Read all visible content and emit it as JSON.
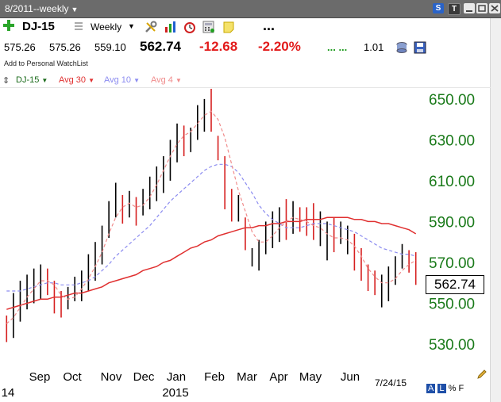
{
  "window": {
    "title": "8/2011--weekly",
    "buttons": [
      "S",
      "T"
    ]
  },
  "toolbar": {
    "symbol": "DJ-15",
    "period": "Weekly",
    "ellipsis": "..."
  },
  "quote": {
    "open": "575.26",
    "high": "575.26",
    "low": "559.10",
    "last": "562.74",
    "change": "-12.68",
    "change_pct": "-2.20%",
    "dots": "... ...",
    "ratio": "1.01",
    "watchlist_link": "Add to Personal WatchList"
  },
  "legend": {
    "symbol": "DJ-15",
    "avg30": "Avg 30",
    "avg10": "Avg 10",
    "avg4": "Avg 4"
  },
  "colors": {
    "up": "#000000",
    "down": "#d61f1f",
    "avg30": "#e03030",
    "avg10": "#8c8cf0",
    "avg4": "#f08c8c",
    "axis": "#1a7a1a"
  },
  "chart_data": {
    "type": "line",
    "title": "",
    "x_labels": [
      "Sep",
      "Oct",
      "Nov",
      "Dec",
      "Jan",
      "Feb",
      "Mar",
      "Apr",
      "May",
      "Jun"
    ],
    "x_year_labels": [
      "14",
      "2015"
    ],
    "y_ticks": [
      "650.00",
      "630.00",
      "610.00",
      "590.00",
      "570.00",
      "550.00",
      "530.00"
    ],
    "ylim": [
      523,
      655
    ],
    "last_price": "562.74",
    "last_date": "7/24/15",
    "bars": [
      {
        "h": 544,
        "l": 531,
        "up": false
      },
      {
        "h": 555,
        "l": 533,
        "up": true
      },
      {
        "h": 561,
        "l": 541,
        "up": true
      },
      {
        "h": 564,
        "l": 547,
        "up": true
      },
      {
        "h": 567,
        "l": 550,
        "up": true
      },
      {
        "h": 569,
        "l": 552,
        "up": true
      },
      {
        "h": 567,
        "l": 554,
        "up": false
      },
      {
        "h": 561,
        "l": 545,
        "up": false
      },
      {
        "h": 556,
        "l": 543,
        "up": false
      },
      {
        "h": 558,
        "l": 547,
        "up": true
      },
      {
        "h": 563,
        "l": 551,
        "up": true
      },
      {
        "h": 566,
        "l": 551,
        "up": true
      },
      {
        "h": 574,
        "l": 556,
        "up": true
      },
      {
        "h": 580,
        "l": 561,
        "up": true
      },
      {
        "h": 588,
        "l": 569,
        "up": true
      },
      {
        "h": 600,
        "l": 582,
        "up": true
      },
      {
        "h": 609,
        "l": 592,
        "up": true
      },
      {
        "h": 603,
        "l": 589,
        "up": false
      },
      {
        "h": 605,
        "l": 592,
        "up": true
      },
      {
        "h": 602,
        "l": 588,
        "up": false
      },
      {
        "h": 606,
        "l": 593,
        "up": true
      },
      {
        "h": 612,
        "l": 596,
        "up": true
      },
      {
        "h": 617,
        "l": 600,
        "up": true
      },
      {
        "h": 622,
        "l": 604,
        "up": true
      },
      {
        "h": 630,
        "l": 610,
        "up": true
      },
      {
        "h": 638,
        "l": 619,
        "up": true
      },
      {
        "h": 637,
        "l": 622,
        "up": false
      },
      {
        "h": 636,
        "l": 624,
        "up": true
      },
      {
        "h": 647,
        "l": 630,
        "up": true
      },
      {
        "h": 650,
        "l": 634,
        "up": true
      },
      {
        "h": 655,
        "l": 634,
        "up": false
      },
      {
        "h": 632,
        "l": 620,
        "up": false
      },
      {
        "h": 622,
        "l": 596,
        "up": false
      },
      {
        "h": 606,
        "l": 590,
        "up": false
      },
      {
        "h": 603,
        "l": 590,
        "up": true
      },
      {
        "h": 592,
        "l": 576,
        "up": false
      },
      {
        "h": 577,
        "l": 568,
        "up": true
      },
      {
        "h": 581,
        "l": 566,
        "up": true
      },
      {
        "h": 590,
        "l": 574,
        "up": true
      },
      {
        "h": 595,
        "l": 577,
        "up": true
      },
      {
        "h": 597,
        "l": 580,
        "up": true
      },
      {
        "h": 601,
        "l": 581,
        "up": false
      },
      {
        "h": 600,
        "l": 584,
        "up": true
      },
      {
        "h": 597,
        "l": 585,
        "up": false
      },
      {
        "h": 597,
        "l": 583,
        "up": false
      },
      {
        "h": 599,
        "l": 581,
        "up": false
      },
      {
        "h": 595,
        "l": 578,
        "up": true
      },
      {
        "h": 590,
        "l": 571,
        "up": true
      },
      {
        "h": 592,
        "l": 575,
        "up": false
      },
      {
        "h": 590,
        "l": 579,
        "up": true
      },
      {
        "h": 588,
        "l": 574,
        "up": true
      },
      {
        "h": 584,
        "l": 566,
        "up": false
      },
      {
        "h": 577,
        "l": 561,
        "up": false
      },
      {
        "h": 569,
        "l": 556,
        "up": false
      },
      {
        "h": 566,
        "l": 554,
        "up": false
      },
      {
        "h": 564,
        "l": 548,
        "up": true
      },
      {
        "h": 568,
        "l": 551,
        "up": true
      },
      {
        "h": 573,
        "l": 559,
        "up": true
      },
      {
        "h": 579,
        "l": 567,
        "up": true
      },
      {
        "h": 576,
        "l": 565,
        "up": false
      },
      {
        "h": 575,
        "l": 559,
        "up": false
      }
    ],
    "series": [
      {
        "name": "Avg 30",
        "values": [
          547,
          548,
          549,
          550,
          551,
          552,
          552,
          553,
          553,
          554,
          555,
          555,
          556,
          557,
          558,
          560,
          561,
          562,
          563,
          564,
          566,
          567,
          568,
          570,
          571,
          573,
          575,
          577,
          578,
          580,
          581,
          583,
          584,
          585,
          586,
          587,
          587,
          588,
          588,
          589,
          589,
          590,
          590,
          590,
          591,
          591,
          591,
          592,
          592,
          592,
          592,
          591,
          591,
          590,
          590,
          589,
          589,
          588,
          587,
          586,
          584
        ]
      },
      {
        "name": "Avg 10",
        "values": [
          556,
          556,
          556,
          557,
          558,
          559,
          560,
          560,
          559,
          559,
          559,
          560,
          561,
          563,
          566,
          569,
          573,
          576,
          579,
          582,
          585,
          588,
          592,
          596,
          600,
          603,
          606,
          609,
          612,
          615,
          617,
          618,
          618,
          617,
          614,
          609,
          604,
          598,
          594,
          591,
          589,
          587,
          587,
          587,
          588,
          589,
          589,
          589,
          588,
          587,
          586,
          585,
          583,
          581,
          579,
          577,
          576,
          575,
          574,
          574,
          573
        ]
      },
      {
        "name": "Avg 4",
        "values": [
          540,
          543,
          548,
          553,
          557,
          561,
          561,
          559,
          554,
          552,
          553,
          557,
          562,
          568,
          575,
          584,
          592,
          597,
          599,
          597,
          598,
          602,
          608,
          615,
          622,
          628,
          632,
          634,
          638,
          642,
          644,
          640,
          631,
          618,
          605,
          595,
          585,
          580,
          580,
          583,
          587,
          590,
          592,
          591,
          590,
          588,
          587,
          584,
          582,
          582,
          581,
          578,
          573,
          567,
          563,
          560,
          560,
          562,
          566,
          569,
          571
        ]
      }
    ]
  }
}
